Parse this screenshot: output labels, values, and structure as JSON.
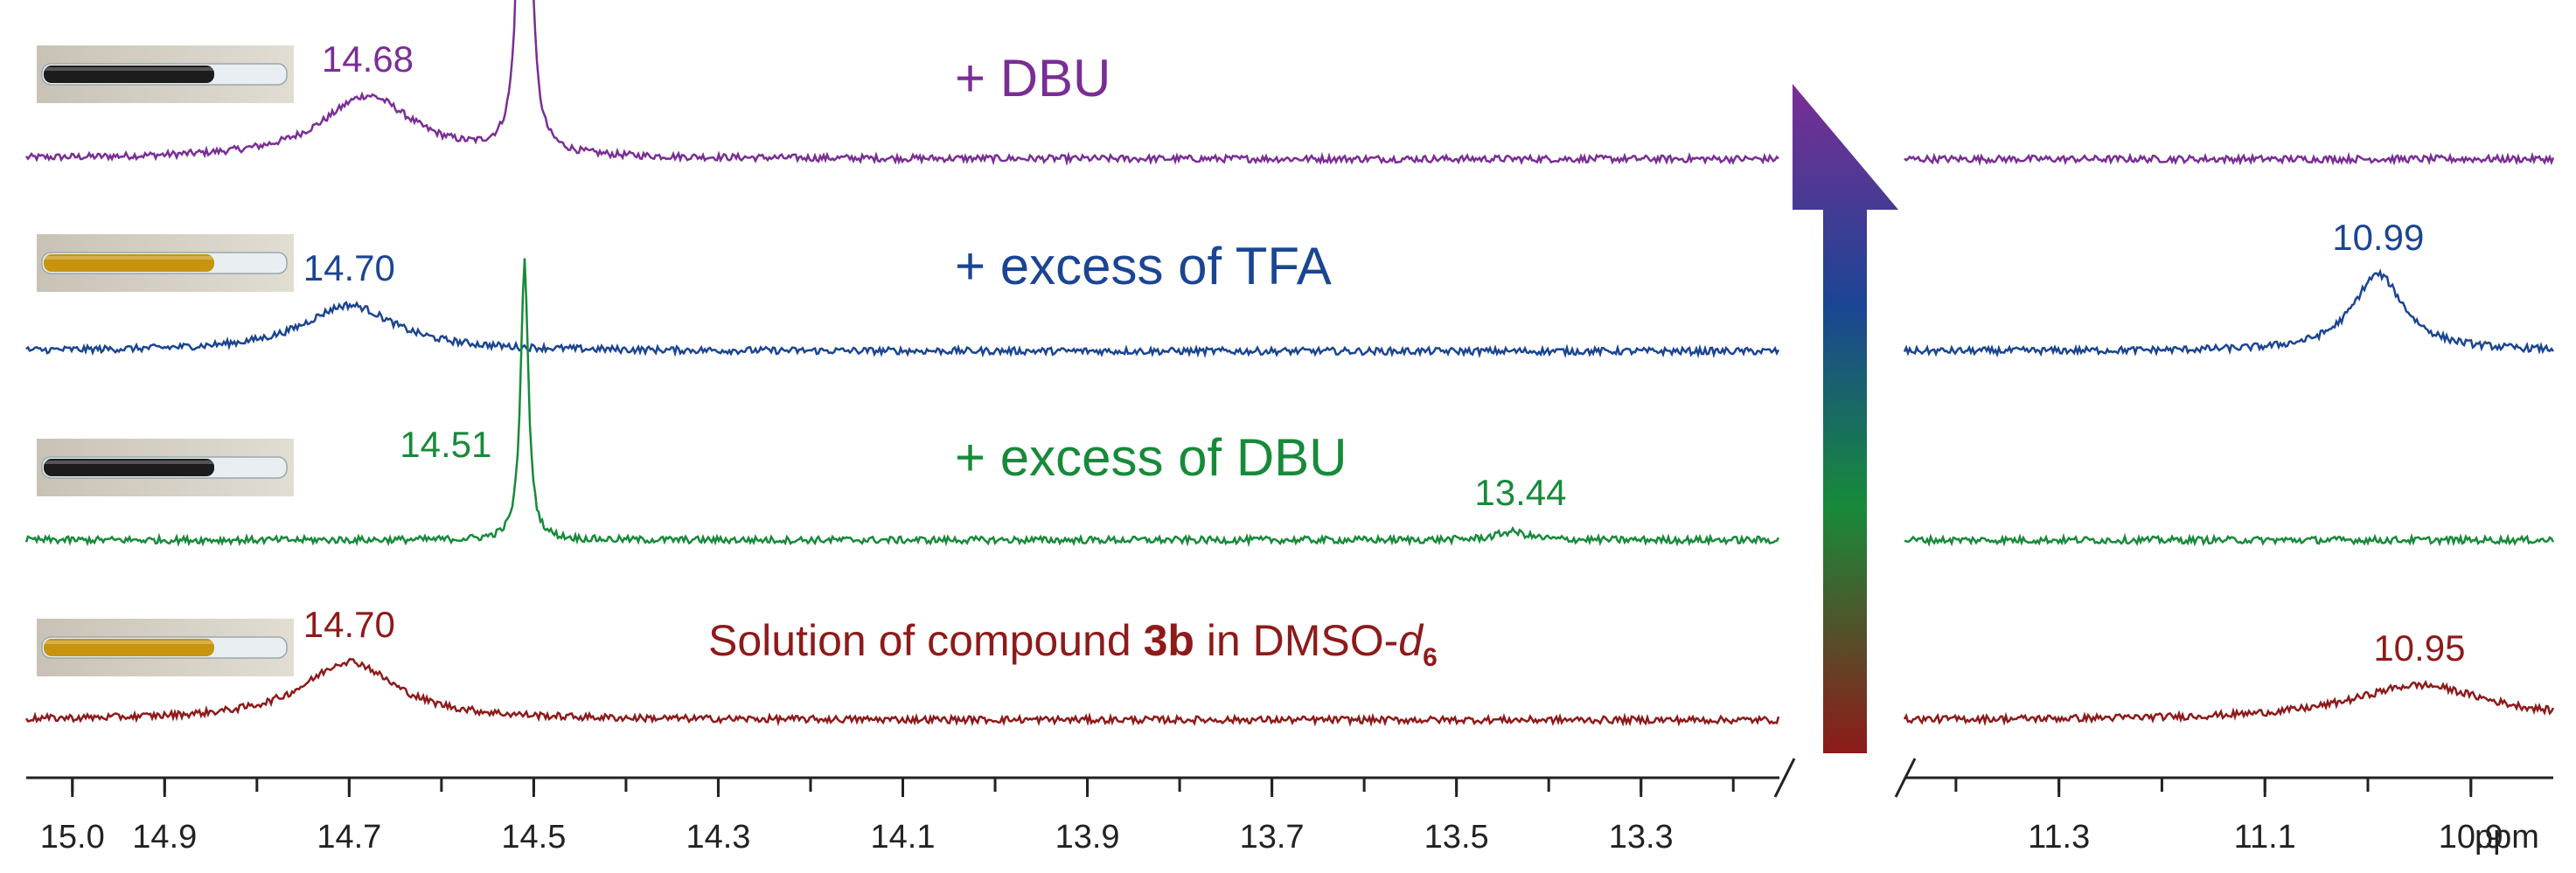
{
  "chart_data": {
    "type": "line",
    "title": "",
    "xlabel": "",
    "unit_label": "ppm",
    "x_reversed": true,
    "axis_break": true,
    "grid": false,
    "panels": [
      {
        "name": "left",
        "xlim": [
          15.05,
          13.15
        ],
        "ticks": [
          "15.0",
          "14.9",
          "14.7",
          "14.5",
          "14.3",
          "14.1",
          "13.9",
          "13.7",
          "13.5",
          "13.3"
        ]
      },
      {
        "name": "right",
        "xlim": [
          11.45,
          10.82
        ],
        "ticks": [
          "11.3",
          "11.1",
          "10.9"
        ]
      }
    ],
    "series": [
      {
        "name": "+ DBU",
        "color": "#7A2E95",
        "peaks": [
          {
            "ppm": 14.68,
            "label": "14.68",
            "height": 0.45,
            "width": 0.06
          },
          {
            "ppm": 14.51,
            "label": "",
            "height": 7.9,
            "width": 0.004
          }
        ]
      },
      {
        "name": "+ excess of TFA",
        "color": "#1B4593",
        "peaks": [
          {
            "ppm": 14.7,
            "label": "14.70",
            "height": 0.33,
            "width": 0.06
          },
          {
            "ppm": 10.99,
            "label": "10.99",
            "height": 0.55,
            "width": 0.03
          }
        ]
      },
      {
        "name": "+ excess of DBU",
        "color": "#178A3A",
        "peaks": [
          {
            "ppm": 14.51,
            "label": "14.51",
            "height": 2.0,
            "width": 0.005
          },
          {
            "ppm": 13.44,
            "label": "13.44",
            "height": 0.06,
            "width": 0.02
          }
        ]
      },
      {
        "name": "Solution of compound 3b in DMSO-d6",
        "color": "#8E1A1A",
        "peaks": [
          {
            "ppm": 14.7,
            "label": "14.70",
            "height": 0.42,
            "width": 0.06
          },
          {
            "ppm": 10.95,
            "label": "10.95",
            "height": 0.25,
            "width": 0.08
          }
        ]
      }
    ]
  },
  "legend": {
    "dbu": "+ DBU",
    "tfa": "+ excess of TFA",
    "excess_dbu": "+ excess of DBU",
    "solution_prefix": "Solution of compound ",
    "solution_bold": "3b",
    "solution_mid": " in DMSO-",
    "solution_italic": "d",
    "solution_sub": "6"
  },
  "arrow": {
    "gradient_colors": [
      "#7A2E95",
      "#1B4593",
      "#178A3A",
      "#8E1A1A"
    ]
  },
  "tube_photos": [
    {
      "name": "tube-dbu",
      "liquid": "#1c1c1c"
    },
    {
      "name": "tube-tfa",
      "liquid": "#C8940F"
    },
    {
      "name": "tube-excess-dbu",
      "liquid": "#1c1c1c"
    },
    {
      "name": "tube-solution",
      "liquid": "#C8940F"
    }
  ]
}
